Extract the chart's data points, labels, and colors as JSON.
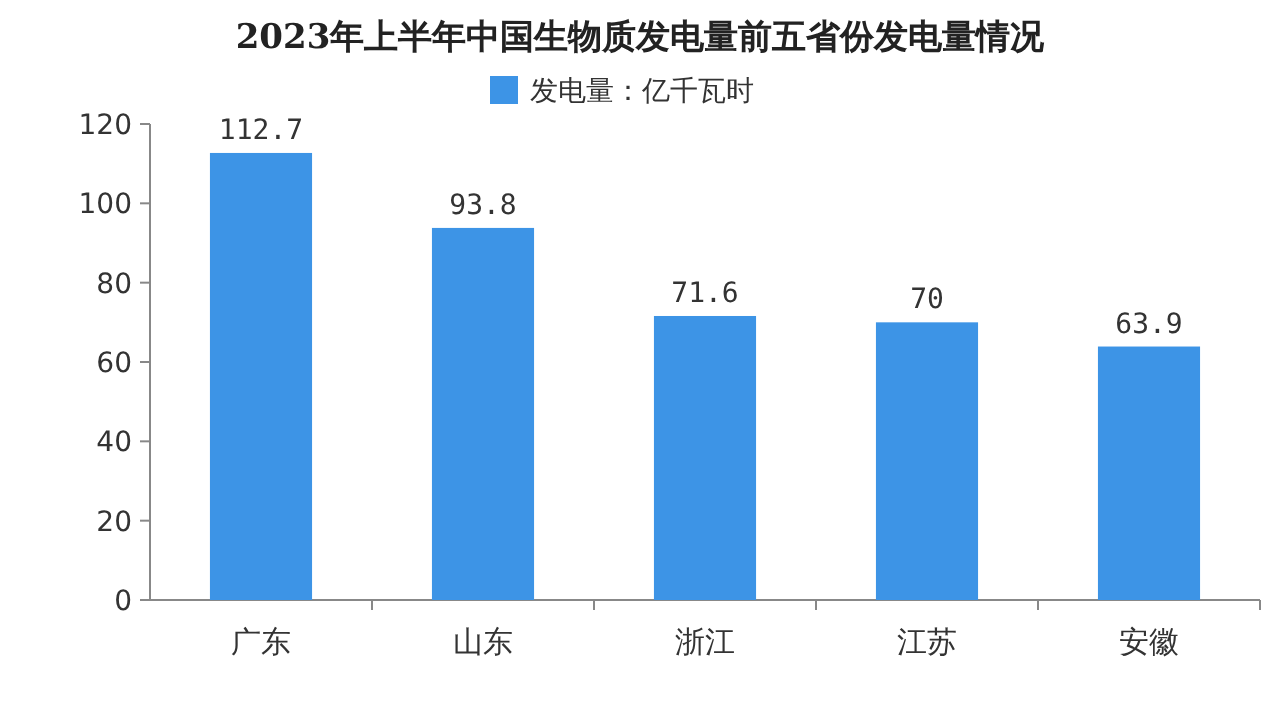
{
  "chart_data": {
    "type": "bar",
    "title": "2023年上半年中国生物质发电量前五省份发电量情况",
    "categories": [
      "广东",
      "山东",
      "浙江",
      "江苏",
      "安徽"
    ],
    "series": [
      {
        "name": "发电量：亿千瓦时",
        "color": "#3d94e6",
        "values": [
          112.7,
          93.8,
          71.6,
          70,
          63.9
        ]
      }
    ],
    "ylim": [
      0,
      120
    ],
    "yticks": [
      0,
      20,
      40,
      60,
      80,
      100,
      120
    ],
    "data_labels": true,
    "legend": "top",
    "grid": false
  }
}
